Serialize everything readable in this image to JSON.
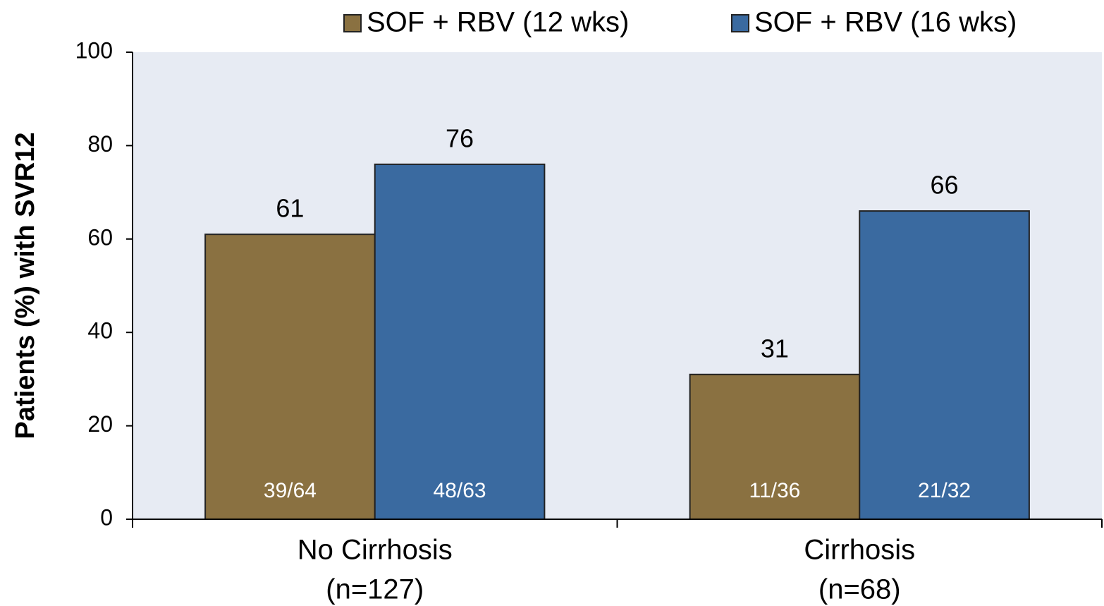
{
  "chart_data": {
    "type": "bar",
    "y_label": "Patients (%) with SVR12",
    "categories": [
      [
        "No Cirrhosis",
        "(n=127)"
      ],
      [
        "Cirrhosis",
        "(n=68)"
      ]
    ],
    "series": [
      {
        "name": "SOF + RBV (12 wks)",
        "color": "#8a7141",
        "values": [
          61,
          31
        ],
        "counts": [
          "39/64",
          "11/36"
        ]
      },
      {
        "name": "SOF + RBV (16 wks)",
        "color": "#3a6aa0",
        "values": [
          76,
          66
        ],
        "counts": [
          "48/63",
          "21/32"
        ]
      }
    ],
    "ylim": [
      0,
      100
    ],
    "yticks": [
      0,
      20,
      40,
      60,
      80,
      100
    ],
    "legend": "top-right"
  }
}
